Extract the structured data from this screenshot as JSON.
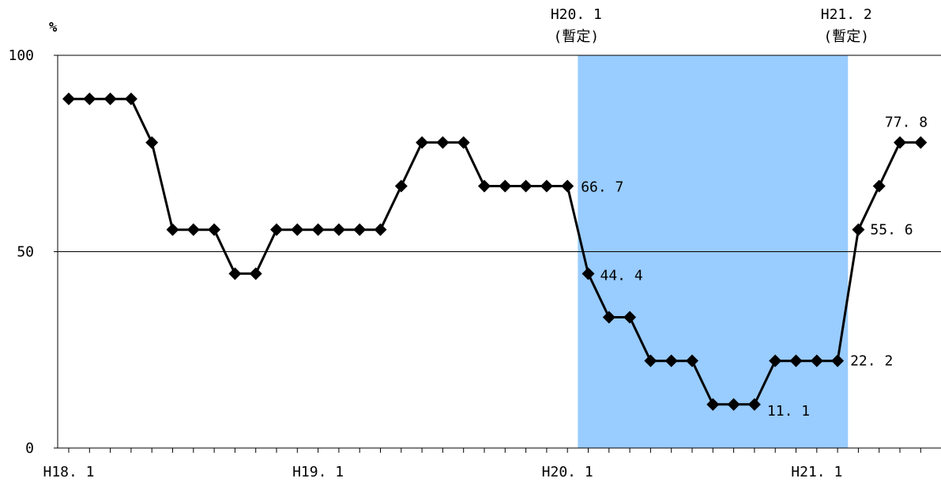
{
  "chart_data": {
    "type": "line",
    "y_unit": "%",
    "ylim": [
      0,
      100
    ],
    "y_ticks": [
      "0",
      "50",
      "100"
    ],
    "x_ticks": [
      {
        "index": 0,
        "label": "H18. 1"
      },
      {
        "index": 12,
        "label": "H19. 1"
      },
      {
        "index": 24,
        "label": "H20. 1"
      },
      {
        "index": 36,
        "label": "H21. 1"
      }
    ],
    "reference_line": 50,
    "shaded_period": {
      "from_index": 24.5,
      "to_index": 37.5,
      "color": "#99ccff",
      "start_note": [
        "H20. 1",
        "(暫定)"
      ],
      "end_note": [
        "H21. 2",
        "(暫定)"
      ]
    },
    "series": [
      {
        "color": "#000000",
        "marker": "diamond",
        "values": [
          88.9,
          88.9,
          88.9,
          88.9,
          77.8,
          55.6,
          55.6,
          55.6,
          44.4,
          44.4,
          55.6,
          55.6,
          55.6,
          55.6,
          55.6,
          55.6,
          66.7,
          77.8,
          77.8,
          77.8,
          66.7,
          66.7,
          66.7,
          66.7,
          66.7,
          44.4,
          33.3,
          33.3,
          22.2,
          22.2,
          22.2,
          11.1,
          11.1,
          11.1,
          22.2,
          22.2,
          22.2,
          22.2,
          55.6,
          66.7,
          77.8,
          77.8
        ]
      }
    ],
    "data_labels": [
      {
        "index": 24,
        "text": "66. 7"
      },
      {
        "index": 25,
        "text": "44. 4"
      },
      {
        "index": 33,
        "text": "11. 1"
      },
      {
        "index": 37,
        "text": "22. 2"
      },
      {
        "index": 38,
        "text": "55. 6"
      },
      {
        "index": 40,
        "text": "77. 8"
      }
    ],
    "grid": false,
    "legend": "none"
  }
}
